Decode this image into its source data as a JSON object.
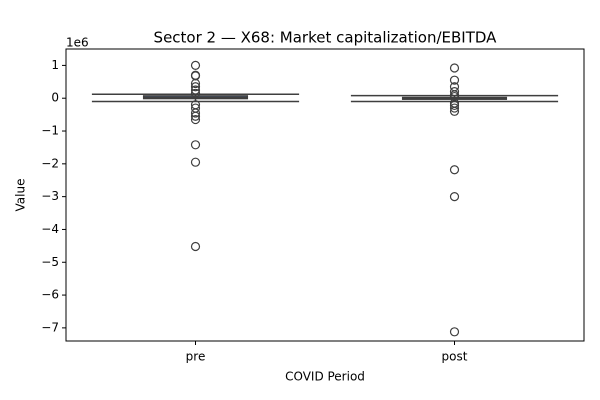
{
  "chart_data": {
    "type": "box",
    "title": "Sector 2 — X68: Market capitalization/EBITDA",
    "xlabel": "COVID Period",
    "ylabel": "Value",
    "y_offset_label": "1e6",
    "categories": [
      "pre",
      "post"
    ],
    "color": "#3f3f3f",
    "boxes": [
      {
        "whislo": -0.1,
        "q1": -0.01,
        "med": 0.02,
        "q3": 0.07,
        "whishi": 0.12,
        "fliers": [
          1.0,
          0.7,
          0.68,
          0.45,
          0.35,
          0.25,
          0.15,
          -0.2,
          -0.3,
          -0.45,
          -0.55,
          -0.65,
          -1.42,
          -1.95,
          -4.52
        ]
      },
      {
        "whislo": -0.1,
        "q1": -0.03,
        "med": -0.01,
        "q3": 0.02,
        "whishi": 0.08,
        "fliers": [
          0.92,
          0.55,
          0.35,
          0.2,
          0.1,
          0.05,
          -0.15,
          -0.22,
          -0.3,
          -0.4,
          -2.18,
          -3.0,
          -7.12
        ]
      }
    ],
    "ylim": [
      -7.4,
      1.5
    ],
    "yticks": [
      1,
      0,
      {
        "value": -1,
        "label": "−1"
      },
      {
        "value": -2,
        "label": "−2"
      },
      {
        "value": -3,
        "label": "−3"
      },
      {
        "value": -4,
        "label": "−4"
      },
      {
        "value": -5,
        "label": "−5"
      },
      {
        "value": -6,
        "label": "−6"
      },
      {
        "value": -7,
        "label": "−7"
      }
    ],
    "grid": false
  }
}
